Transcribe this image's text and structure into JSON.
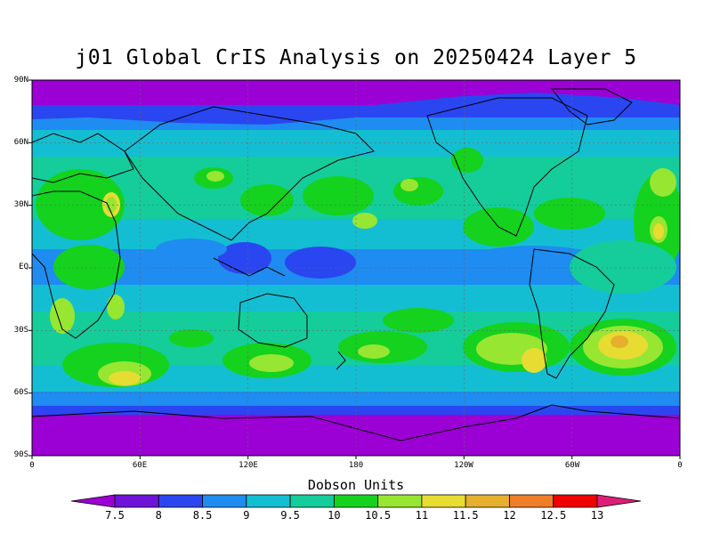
{
  "title": "j01 Global CrIS Analysis on 20250424 Layer 5",
  "lat_labels": [
    "90N",
    "60N",
    "30N",
    "EQ",
    "30S",
    "60S",
    "90S"
  ],
  "lon_labels": [
    "0",
    "60E",
    "120E",
    "180",
    "120W",
    "60W",
    "0"
  ],
  "colorbar": {
    "title": "Dobson Units",
    "levels": [
      "7.5",
      "8",
      "8.5",
      "9",
      "9.5",
      "10",
      "10.5",
      "11",
      "11.5",
      "12",
      "12.5",
      "13"
    ],
    "colors": [
      "#9b00d4",
      "#6e14d8",
      "#2a46f0",
      "#1e8cf0",
      "#14bed2",
      "#14cd9b",
      "#14d21e",
      "#96e632",
      "#e6dc32",
      "#e6af2d",
      "#f07d28",
      "#f00000",
      "#dc1e78"
    ]
  }
}
